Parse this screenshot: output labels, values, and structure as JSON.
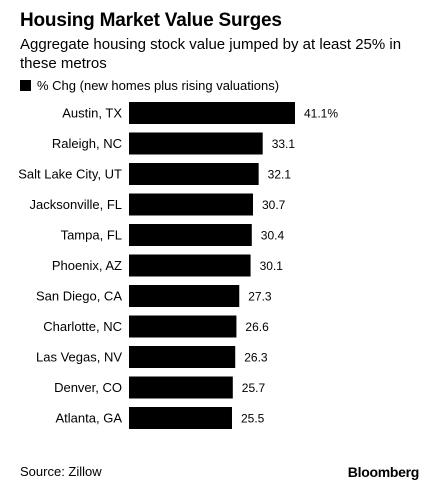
{
  "chart_data": {
    "type": "bar",
    "orientation": "horizontal",
    "title": "Housing Market Value Surges",
    "subtitle": "Aggregate housing stock value jumped by at least 25% in these metros",
    "legend": "% Chg (new homes plus rising valuations)",
    "categories": [
      "Austin, TX",
      "Raleigh, NC",
      "Salt Lake City, UT",
      "Jacksonville, FL",
      "Tampa, FL",
      "Phoenix, AZ",
      "San Diego, CA",
      "Charlotte, NC",
      "Las Vegas, NV",
      "Denver, CO",
      "Atlanta, GA"
    ],
    "values": [
      41.1,
      33.1,
      32.1,
      30.7,
      30.4,
      30.1,
      27.3,
      26.6,
      26.3,
      25.7,
      25.5
    ],
    "value_labels": [
      "41.1%",
      "33.1",
      "32.1",
      "30.7",
      "30.4",
      "30.1",
      "27.3",
      "26.6",
      "26.3",
      "25.7",
      "25.5"
    ],
    "xlim": [
      0,
      41.1
    ],
    "grid": false,
    "bar_color": "#000000"
  },
  "footer": {
    "source": "Source: Zillow",
    "brand": "Bloomberg"
  }
}
